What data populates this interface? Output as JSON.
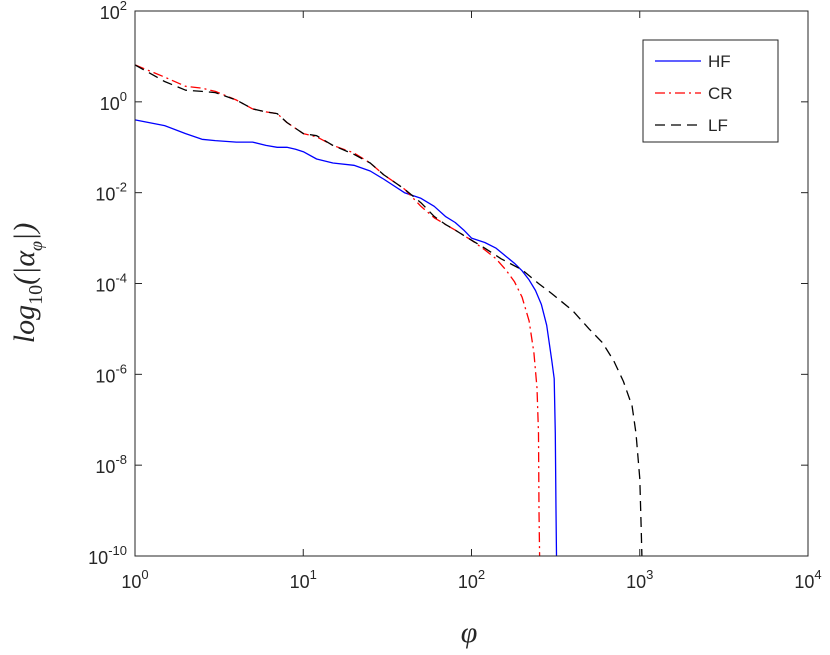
{
  "chart_data": {
    "type": "line",
    "xscale": "log",
    "yscale": "log",
    "xlim": [
      1,
      10000
    ],
    "ylim": [
      1e-10,
      100
    ],
    "x_ticks": [
      {
        "base": "10",
        "exp": "0",
        "value": 1
      },
      {
        "base": "10",
        "exp": "1",
        "value": 10
      },
      {
        "base": "10",
        "exp": "2",
        "value": 100
      },
      {
        "base": "10",
        "exp": "3",
        "value": 1000
      },
      {
        "base": "10",
        "exp": "4",
        "value": 10000
      }
    ],
    "y_ticks": [
      {
        "base": "10",
        "exp": "-10",
        "value": 1e-10
      },
      {
        "base": "10",
        "exp": "-8",
        "value": 1e-08
      },
      {
        "base": "10",
        "exp": "-6",
        "value": 1e-06
      },
      {
        "base": "10",
        "exp": "-4",
        "value": 0.0001
      },
      {
        "base": "10",
        "exp": "-2",
        "value": 0.01
      },
      {
        "base": "10",
        "exp": "0",
        "value": 1
      },
      {
        "base": "10",
        "exp": "2",
        "value": 100
      }
    ],
    "xlabel": "φ",
    "ylabel": {
      "pre": "log",
      "sub": "10",
      "mid": "(|α",
      "sub2": "φ",
      "post": "|)"
    },
    "grid": false,
    "legend_position": "top-right",
    "series": [
      {
        "name": "HF",
        "color": "#0000ff",
        "dash": "solid",
        "x": [
          1,
          1.5,
          2,
          2.5,
          3,
          4,
          5,
          6,
          7,
          8,
          9,
          10,
          12,
          15,
          20,
          25,
          30,
          40,
          50,
          60,
          70,
          80,
          90,
          100,
          120,
          140,
          160,
          180,
          200,
          220,
          240,
          260,
          280,
          300,
          310,
          315,
          318,
          320
        ],
        "y": [
          0.4,
          0.3,
          0.2,
          0.15,
          0.14,
          0.13,
          0.13,
          0.11,
          0.1,
          0.1,
          0.09,
          0.08,
          0.055,
          0.045,
          0.04,
          0.03,
          0.02,
          0.01,
          0.0075,
          0.005,
          0.003,
          0.0022,
          0.0015,
          0.001,
          0.0008,
          0.0006,
          0.0004,
          0.00028,
          0.00019,
          0.00012,
          7e-05,
          3.5e-05,
          1.2e-05,
          2e-06,
          8e-07,
          5e-08,
          1e-09,
          1e-10
        ]
      },
      {
        "name": "CR",
        "color": "#ff0000",
        "dash": "dashdot",
        "x": [
          1,
          1.5,
          2,
          2.5,
          3,
          4,
          5,
          6,
          7,
          8,
          10,
          12,
          15,
          20,
          25,
          30,
          40,
          50,
          60,
          70,
          80,
          100,
          120,
          140,
          160,
          180,
          200,
          220,
          235,
          245,
          250,
          252,
          254
        ],
        "y": [
          6.5,
          3.5,
          2.2,
          2.0,
          1.7,
          1.1,
          0.7,
          0.6,
          0.55,
          0.35,
          0.2,
          0.17,
          0.11,
          0.075,
          0.045,
          0.025,
          0.012,
          0.005,
          0.0028,
          0.002,
          0.0015,
          0.0009,
          0.00055,
          0.00035,
          0.0002,
          0.00011,
          5e-05,
          1.5e-05,
          3e-06,
          5e-07,
          5e-08,
          1e-09,
          1e-10
        ]
      },
      {
        "name": "LF",
        "color": "#000000",
        "dash": "dashed",
        "x": [
          1,
          1.5,
          2,
          2.5,
          3,
          4,
          5,
          6,
          7,
          8,
          10,
          12,
          15,
          20,
          25,
          30,
          40,
          50,
          60,
          70,
          80,
          100,
          120,
          150,
          200,
          250,
          300,
          400,
          500,
          600,
          700,
          800,
          900,
          950,
          1000,
          1020,
          1030
        ],
        "y": [
          6.5,
          2.8,
          1.8,
          1.7,
          1.6,
          1.1,
          0.7,
          0.6,
          0.55,
          0.35,
          0.2,
          0.18,
          0.11,
          0.07,
          0.045,
          0.025,
          0.012,
          0.006,
          0.003,
          0.002,
          0.0015,
          0.0009,
          0.0006,
          0.00035,
          0.0002,
          0.0001,
          6e-05,
          2.5e-05,
          1e-05,
          5e-06,
          2e-06,
          7e-07,
          2e-07,
          5e-08,
          5e-09,
          4e-10,
          1e-10
        ]
      }
    ]
  }
}
